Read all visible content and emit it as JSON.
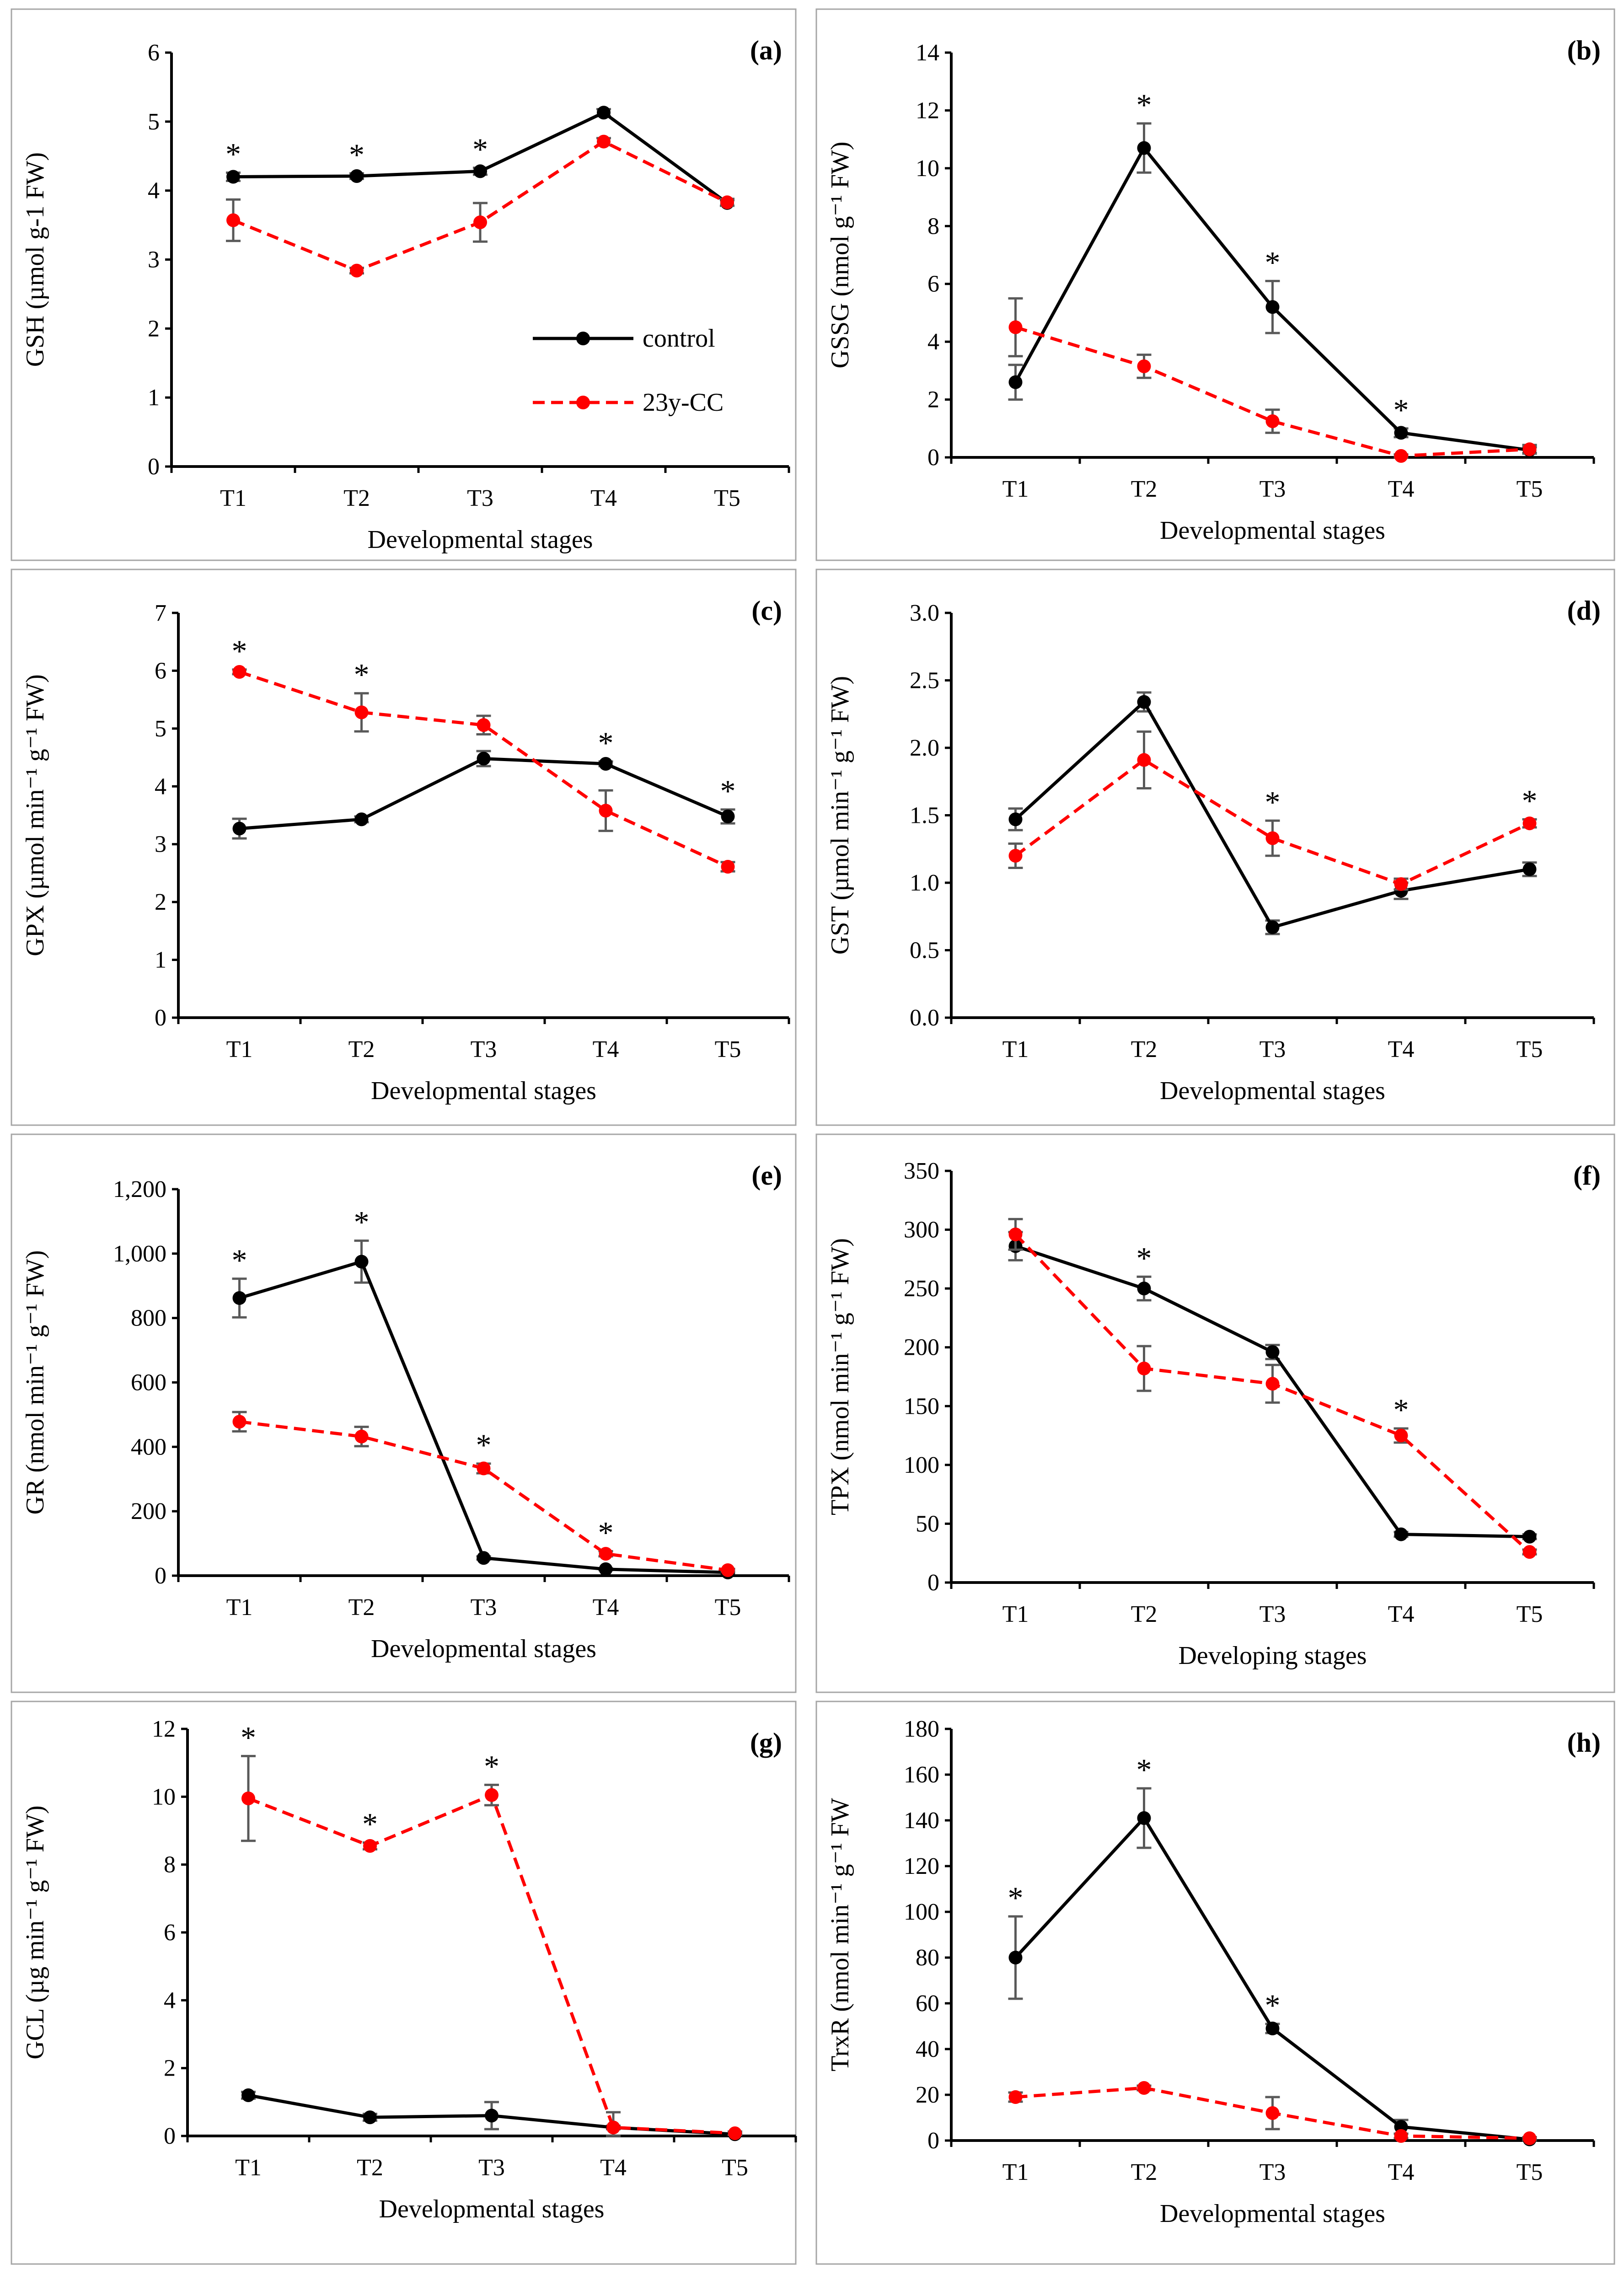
{
  "colors": {
    "control": "#000000",
    "treated": "#ff0000",
    "error_bar": "#595959",
    "frame": "#a6a6a6"
  },
  "legend": {
    "control": "control",
    "treated": "23y-CC"
  },
  "chart_data": [
    {
      "type": "line",
      "panel_label": "(a)",
      "ylabel": "GSH (µmol g-1 FW)",
      "xlabel": "Developmental stages",
      "categories": [
        "T1",
        "T2",
        "T3",
        "T4",
        "T5"
      ],
      "ylim": [
        0,
        6
      ],
      "yticks": [
        0,
        1,
        2,
        3,
        4,
        5,
        6
      ],
      "ytick_labels": [
        "0",
        "1",
        "2",
        "3",
        "4",
        "5",
        "6"
      ],
      "series": [
        {
          "name": "control",
          "values": [
            4.2,
            4.21,
            4.28,
            5.13,
            3.82
          ],
          "errors": [
            0.06,
            0.04,
            0.05,
            0.05,
            0.04
          ]
        },
        {
          "name": "23y-CC",
          "values": [
            3.57,
            2.84,
            3.54,
            4.71,
            3.83
          ],
          "errors": [
            0.3,
            0.04,
            0.28,
            0.05,
            0.05
          ]
        }
      ],
      "significance": [
        "*",
        "*",
        "*",
        "",
        ""
      ],
      "legend_shown": true,
      "legend_position": "center-right"
    },
    {
      "type": "line",
      "panel_label": "(b)",
      "ylabel": "GSSG (nmol g⁻¹ FW)",
      "xlabel": "Developmental stages",
      "categories": [
        "T1",
        "T2",
        "T3",
        "T4",
        "T5"
      ],
      "ylim": [
        0,
        14
      ],
      "yticks": [
        0,
        2,
        4,
        6,
        8,
        10,
        12,
        14
      ],
      "ytick_labels": [
        "0",
        "2",
        "4",
        "6",
        "8",
        "10",
        "12",
        "14"
      ],
      "series": [
        {
          "name": "control",
          "values": [
            2.6,
            10.7,
            5.2,
            0.85,
            0.25
          ],
          "errors": [
            0.6,
            0.85,
            0.9,
            0.15,
            0.1
          ]
        },
        {
          "name": "23y-CC",
          "values": [
            4.5,
            3.15,
            1.25,
            0.05,
            0.28
          ],
          "errors": [
            1.0,
            0.4,
            0.4,
            0.05,
            0.15
          ]
        }
      ],
      "significance": [
        "",
        "*",
        "*",
        "*",
        ""
      ],
      "legend_shown": false
    },
    {
      "type": "line",
      "panel_label": "(c)",
      "ylabel": "GPX (µmol min⁻¹ g⁻¹ FW)",
      "xlabel": "Developmental stages",
      "categories": [
        "T1",
        "T2",
        "T3",
        "T4",
        "T5"
      ],
      "ylim": [
        0,
        7
      ],
      "yticks": [
        0,
        1,
        2,
        3,
        4,
        5,
        6,
        7
      ],
      "ytick_labels": [
        "0",
        "1",
        "2",
        "3",
        "4",
        "5",
        "6",
        "7"
      ],
      "series": [
        {
          "name": "control",
          "values": [
            3.27,
            3.43,
            4.48,
            4.39,
            3.48
          ],
          "errors": [
            0.17,
            0.05,
            0.13,
            0.04,
            0.12
          ]
        },
        {
          "name": "23y-CC",
          "values": [
            5.98,
            5.28,
            5.06,
            3.58,
            2.61
          ],
          "errors": [
            0.04,
            0.33,
            0.16,
            0.35,
            0.08
          ]
        }
      ],
      "significance": [
        "*",
        "*",
        "",
        "*",
        "*"
      ],
      "legend_shown": false
    },
    {
      "type": "line",
      "panel_label": "(d)",
      "ylabel": "GST (µmol min⁻¹ g⁻¹ FW)",
      "xlabel": "Developmental stages",
      "categories": [
        "T1",
        "T2",
        "T3",
        "T4",
        "T5"
      ],
      "ylim": [
        0,
        3
      ],
      "yticks": [
        0,
        0.5,
        1,
        1.5,
        2,
        2.5,
        3
      ],
      "ytick_labels": [
        "0.0",
        "0.5",
        "1.0",
        "1.5",
        "2.0",
        "2.5",
        "3.0"
      ],
      "series": [
        {
          "name": "control",
          "values": [
            1.47,
            2.34,
            0.67,
            0.94,
            1.1
          ],
          "errors": [
            0.08,
            0.07,
            0.05,
            0.06,
            0.05
          ]
        },
        {
          "name": "23y-CC",
          "values": [
            1.2,
            1.91,
            1.33,
            0.99,
            1.44
          ],
          "errors": [
            0.09,
            0.21,
            0.13,
            0.04,
            0.03
          ]
        }
      ],
      "significance": [
        "",
        "",
        "*",
        "",
        "*"
      ],
      "legend_shown": false
    },
    {
      "type": "line",
      "panel_label": "(e)",
      "ylabel": "GR (nmol min⁻¹ g⁻¹ FW)",
      "xlabel": "Developmental stages",
      "categories": [
        "T1",
        "T2",
        "T3",
        "T4",
        "T5"
      ],
      "ylim": [
        0,
        1200
      ],
      "yticks": [
        0,
        200,
        400,
        600,
        800,
        1000,
        1200
      ],
      "ytick_labels": [
        "0",
        "200",
        "400",
        "600",
        "800",
        "1,000",
        "1,200"
      ],
      "series": [
        {
          "name": "control",
          "values": [
            862,
            975,
            55,
            20,
            10
          ],
          "errors": [
            60,
            65,
            5,
            3,
            2
          ]
        },
        {
          "name": "23y-CC",
          "values": [
            478,
            432,
            333,
            68,
            17
          ],
          "errors": [
            30,
            30,
            15,
            8,
            4
          ]
        }
      ],
      "significance": [
        "*",
        "*",
        "*",
        "*",
        ""
      ],
      "legend_shown": false
    },
    {
      "type": "line",
      "panel_label": "(f)",
      "ylabel": "TPX (nmol min⁻¹ g⁻¹ FW)",
      "xlabel": "Developing stages",
      "categories": [
        "T1",
        "T2",
        "T3",
        "T4",
        "T5"
      ],
      "ylim": [
        0,
        350
      ],
      "yticks": [
        0,
        50,
        100,
        150,
        200,
        250,
        300,
        350
      ],
      "ytick_labels": [
        "0",
        "50",
        "100",
        "150",
        "200",
        "250",
        "300",
        "350"
      ],
      "series": [
        {
          "name": "control",
          "values": [
            286,
            250,
            196,
            41,
            39
          ],
          "errors": [
            12,
            10,
            6,
            2,
            2
          ]
        },
        {
          "name": "23y-CC",
          "values": [
            296,
            182,
            169,
            125,
            26
          ],
          "errors": [
            13,
            19,
            16,
            6,
            2
          ]
        }
      ],
      "significance": [
        "",
        "*",
        "",
        "*",
        ""
      ],
      "legend_shown": false
    },
    {
      "type": "line",
      "panel_label": "(g)",
      "ylabel": "GCL (µg min⁻¹ g⁻¹ FW)",
      "xlabel": "Developmental stages",
      "categories": [
        "T1",
        "T2",
        "T3",
        "T4",
        "T5"
      ],
      "ylim": [
        0,
        12
      ],
      "yticks": [
        0,
        2,
        4,
        6,
        8,
        10,
        12
      ],
      "ytick_labels": [
        "0",
        "2",
        "4",
        "6",
        "8",
        "10",
        "12"
      ],
      "series": [
        {
          "name": "control",
          "values": [
            1.2,
            0.55,
            0.6,
            0.25,
            0.05
          ],
          "errors": [
            0.1,
            0.1,
            0.4,
            0.05,
            0.02
          ]
        },
        {
          "name": "23y-CC",
          "values": [
            9.95,
            8.55,
            10.05,
            0.25,
            0.08
          ],
          "errors": [
            1.25,
            0.1,
            0.3,
            0.45,
            0.05
          ]
        }
      ],
      "significance": [
        "*",
        "*",
        "*",
        "",
        ""
      ],
      "legend_shown": false
    },
    {
      "type": "line",
      "panel_label": "(h)",
      "ylabel": "TrxR (nmol min⁻¹ g⁻¹ FW",
      "xlabel": "Developmental stages",
      "categories": [
        "T1",
        "T2",
        "T3",
        "T4",
        "T5"
      ],
      "ylim": [
        0,
        180
      ],
      "yticks": [
        0,
        20,
        40,
        60,
        80,
        100,
        120,
        140,
        160,
        180
      ],
      "ytick_labels": [
        "0",
        "20",
        "40",
        "60",
        "80",
        "100",
        "120",
        "140",
        "160",
        "180"
      ],
      "series": [
        {
          "name": "control",
          "values": [
            80,
            141,
            49,
            6,
            0.5
          ],
          "errors": [
            18,
            13,
            2,
            3,
            0.5
          ]
        },
        {
          "name": "23y-CC",
          "values": [
            19,
            23,
            12,
            2,
            1
          ],
          "errors": [
            2,
            1,
            7,
            1,
            0.5
          ]
        }
      ],
      "significance": [
        "*",
        "*",
        "*",
        "",
        ""
      ],
      "legend_shown": false
    }
  ]
}
